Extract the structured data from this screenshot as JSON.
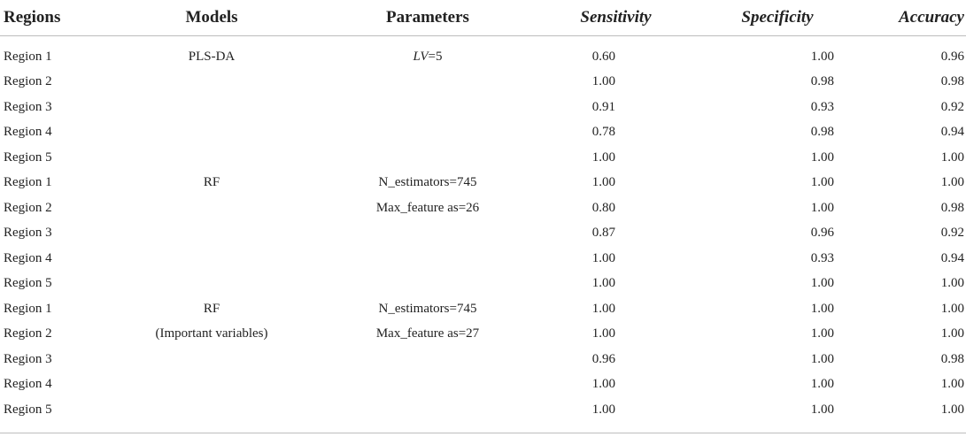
{
  "headers": {
    "regions": "Regions",
    "models": "Models",
    "parameters": "Parameters",
    "sensitivity": "Sensitivity",
    "specificity": "Specificity",
    "accuracy": "Accuracy"
  },
  "rows": [
    {
      "region": "Region 1",
      "model": "PLS-DA",
      "param_italic": "LV",
      "param": "=5",
      "sensitivity": "0.60",
      "specificity": "1.00",
      "accuracy": "0.96"
    },
    {
      "region": "Region 2",
      "model": "",
      "param_italic": "",
      "param": "",
      "sensitivity": "1.00",
      "specificity": "0.98",
      "accuracy": "0.98"
    },
    {
      "region": "Region 3",
      "model": "",
      "param_italic": "",
      "param": "",
      "sensitivity": "0.91",
      "specificity": "0.93",
      "accuracy": "0.92"
    },
    {
      "region": "Region 4",
      "model": "",
      "param_italic": "",
      "param": "",
      "sensitivity": "0.78",
      "specificity": "0.98",
      "accuracy": "0.94"
    },
    {
      "region": "Region 5",
      "model": "",
      "param_italic": "",
      "param": "",
      "sensitivity": "1.00",
      "specificity": "1.00",
      "accuracy": "1.00"
    },
    {
      "region": "Region 1",
      "model": "RF",
      "param_italic": "",
      "param": "N_estimators=745",
      "sensitivity": "1.00",
      "specificity": "1.00",
      "accuracy": "1.00"
    },
    {
      "region": "Region 2",
      "model": "",
      "param_italic": "",
      "param": "Max_feature as=26",
      "sensitivity": "0.80",
      "specificity": "1.00",
      "accuracy": "0.98"
    },
    {
      "region": "Region 3",
      "model": "",
      "param_italic": "",
      "param": "",
      "sensitivity": "0.87",
      "specificity": "0.96",
      "accuracy": "0.92"
    },
    {
      "region": "Region 4",
      "model": "",
      "param_italic": "",
      "param": "",
      "sensitivity": "1.00",
      "specificity": "0.93",
      "accuracy": "0.94"
    },
    {
      "region": "Region 5",
      "model": "",
      "param_italic": "",
      "param": "",
      "sensitivity": "1.00",
      "specificity": "1.00",
      "accuracy": "1.00"
    },
    {
      "region": "Region 1",
      "model": "RF",
      "param_italic": "",
      "param": "N_estimators=745",
      "sensitivity": "1.00",
      "specificity": "1.00",
      "accuracy": "1.00"
    },
    {
      "region": "Region 2",
      "model": "(Important variables)",
      "param_italic": "",
      "param": "Max_feature as=27",
      "sensitivity": "1.00",
      "specificity": "1.00",
      "accuracy": "1.00"
    },
    {
      "region": "Region 3",
      "model": "",
      "param_italic": "",
      "param": "",
      "sensitivity": "0.96",
      "specificity": "1.00",
      "accuracy": "0.98"
    },
    {
      "region": "Region 4",
      "model": "",
      "param_italic": "",
      "param": "",
      "sensitivity": "1.00",
      "specificity": "1.00",
      "accuracy": "1.00"
    },
    {
      "region": "Region 5",
      "model": "",
      "param_italic": "",
      "param": "",
      "sensitivity": "1.00",
      "specificity": "1.00",
      "accuracy": "1.00"
    }
  ]
}
